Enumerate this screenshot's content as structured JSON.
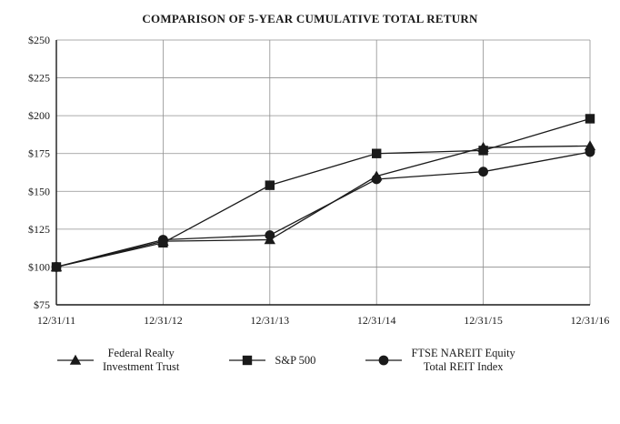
{
  "title": "COMPARISON OF 5-YEAR CUMULATIVE TOTAL RETURN",
  "chart_data": {
    "type": "line",
    "title": "COMPARISON OF 5-YEAR CUMULATIVE TOTAL RETURN",
    "x_labels": [
      "12/31/11",
      "12/31/12",
      "12/31/13",
      "12/31/14",
      "12/31/15",
      "12/31/16"
    ],
    "ylim": [
      75,
      250
    ],
    "ytick_step": 25,
    "ytick_prefix": "$",
    "ytick_labels": [
      "$75",
      "$100",
      "$125",
      "$150",
      "$175",
      "$200",
      "$225",
      "$250"
    ],
    "grid": true,
    "legend_position": "bottom",
    "series": [
      {
        "name": "Federal Realty Investment Trust",
        "legend_lines": [
          "Federal Realty",
          "Investment Trust"
        ],
        "marker": "triangle",
        "values": [
          100,
          117,
          118,
          160,
          179,
          180
        ]
      },
      {
        "name": "S&P 500",
        "legend_lines": [
          "S&P 500"
        ],
        "marker": "square",
        "values": [
          100,
          116,
          154,
          175,
          177,
          198
        ]
      },
      {
        "name": "FTSE NAREIT Equity Total REIT Index",
        "legend_lines": [
          "FTSE NAREIT Equity",
          "Total REIT Index"
        ],
        "marker": "circle",
        "values": [
          100,
          118,
          121,
          158,
          163,
          176
        ]
      }
    ],
    "colors": {
      "line": "#1a1a1a",
      "grid": "#8f8f8f",
      "axis": "#1a1a1a"
    }
  }
}
